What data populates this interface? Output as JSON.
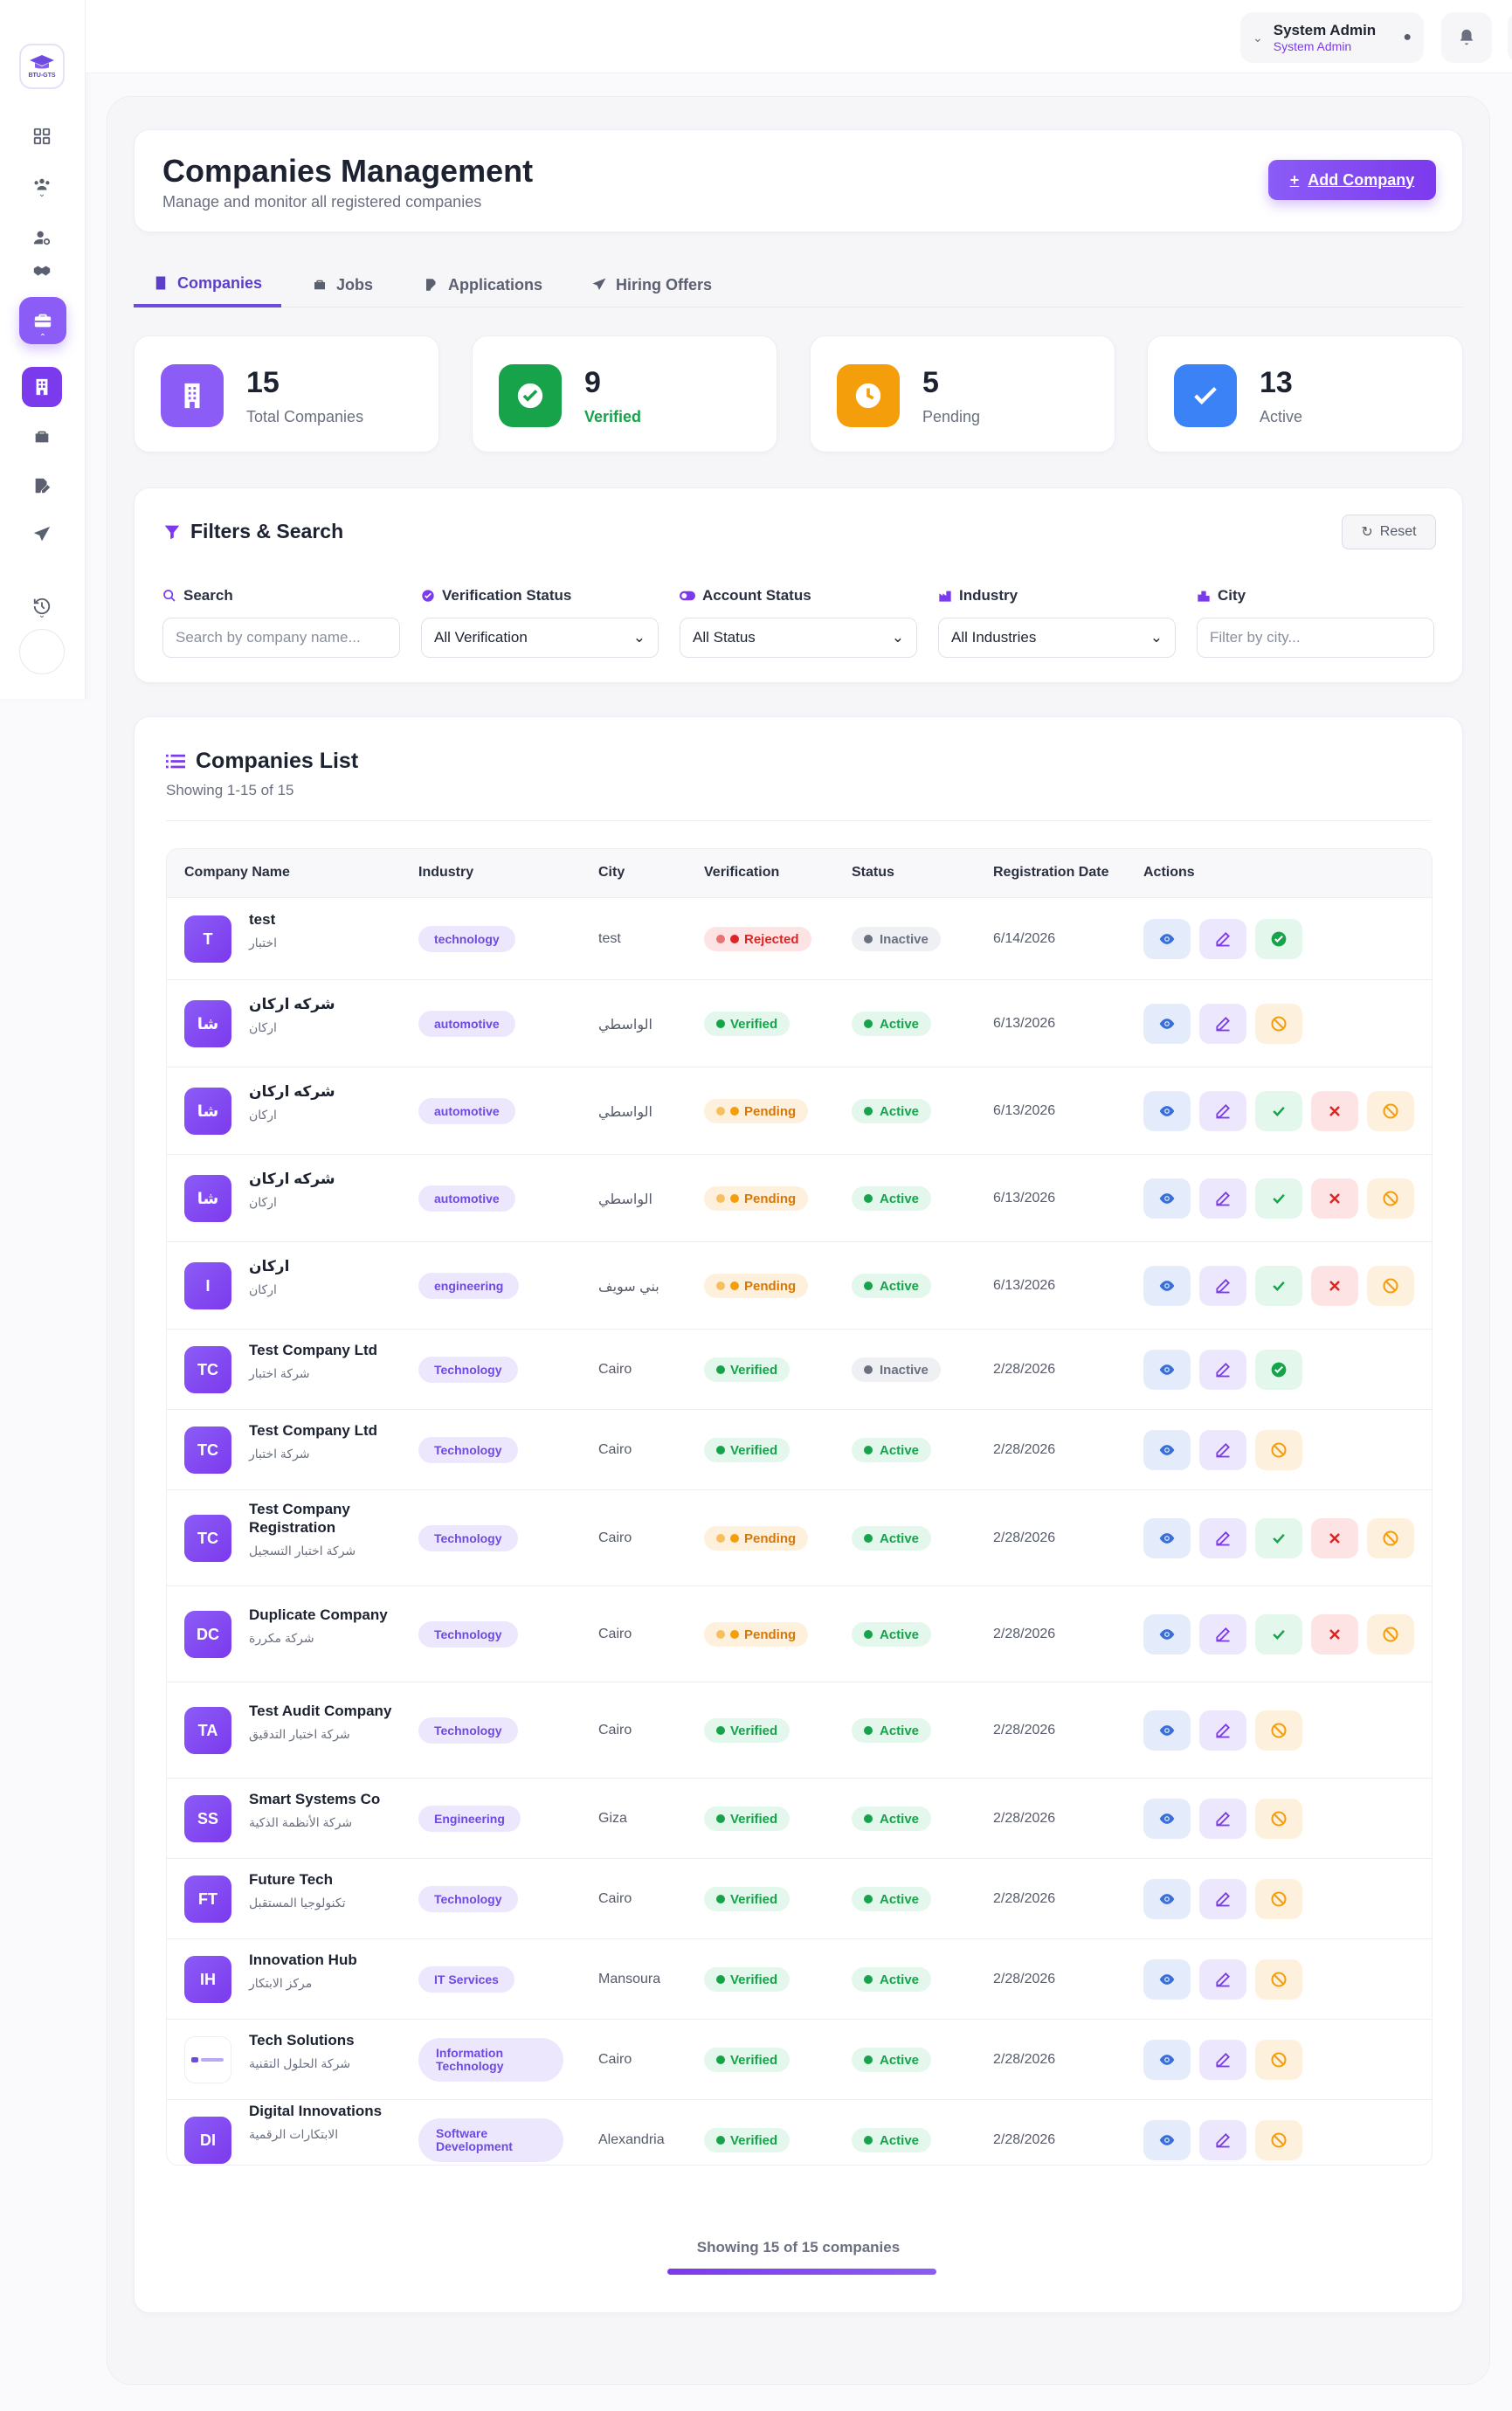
{
  "brand": {
    "logo_text": "BTU-GTS"
  },
  "sidebar": {
    "icons": [
      "dashboard-icon",
      "users-group-icon",
      "user-settings-icon",
      "handshake-icon",
      "briefcase-icon",
      "building-icon",
      "briefcase-small-icon",
      "file-edit-icon",
      "paper-plane-icon",
      "history-icon"
    ]
  },
  "topbar": {
    "user_name": "System Admin",
    "user_role": "System Admin",
    "lang": "ar"
  },
  "header": {
    "title": "Companies Management",
    "subtitle": "Manage and monitor all registered companies",
    "add_button": "Add Company"
  },
  "tabs": [
    {
      "label": "Companies",
      "active": true
    },
    {
      "label": "Jobs",
      "active": false
    },
    {
      "label": "Applications",
      "active": false
    },
    {
      "label": "Hiring Offers",
      "active": false
    }
  ],
  "stats": [
    {
      "value": "15",
      "label": "Total Companies",
      "color": "#8b5cf6"
    },
    {
      "value": "9",
      "label": "Verified",
      "color": "#16a34a"
    },
    {
      "value": "5",
      "label": "Pending",
      "color": "#f59e0b"
    },
    {
      "value": "13",
      "label": "Active",
      "color": "#3b82f6"
    }
  ],
  "filters": {
    "title": "Filters & Search",
    "reset": "Reset",
    "search_label": "Search",
    "search_placeholder": "Search by company name...",
    "verification_label": "Verification Status",
    "verification_value": "All Verification",
    "account_label": "Account Status",
    "account_value": "All Status",
    "industry_label": "Industry",
    "industry_value": "All Industries",
    "city_label": "City",
    "city_placeholder": "Filter by city..."
  },
  "list": {
    "title": "Companies List",
    "subtitle": "Showing 1-15 of 15",
    "columns": [
      "Company Name",
      "Industry",
      "City",
      "Verification",
      "Status",
      "Registration Date",
      "Actions"
    ],
    "footer": "Showing 15 of 15 companies"
  },
  "companies": [
    {
      "initials": "T",
      "name": "test",
      "name_ar": "اختبار",
      "industry": "technology",
      "city": "test",
      "verification": "Rejected",
      "status": "Inactive",
      "date": "6/14/2026",
      "actions": [
        "view",
        "edit",
        "activate"
      ]
    },
    {
      "initials": "شا",
      "name": "شركه اركان",
      "name_ar": "اركان",
      "industry": "automotive",
      "city": "الواسطي",
      "verification": "Verified",
      "status": "Active",
      "date": "6/13/2026",
      "actions": [
        "view",
        "edit",
        "suspend"
      ]
    },
    {
      "initials": "شا",
      "name": "شركه اركان",
      "name_ar": "اركان",
      "industry": "automotive",
      "city": "الواسطي",
      "verification": "Pending",
      "status": "Active",
      "date": "6/13/2026",
      "actions": [
        "view",
        "edit",
        "approve",
        "reject",
        "suspend"
      ]
    },
    {
      "initials": "شا",
      "name": "شركه اركان",
      "name_ar": "اركان",
      "industry": "automotive",
      "city": "الواسطي",
      "verification": "Pending",
      "status": "Active",
      "date": "6/13/2026",
      "actions": [
        "view",
        "edit",
        "approve",
        "reject",
        "suspend"
      ]
    },
    {
      "initials": "I",
      "name": "اركان",
      "name_ar": "اركان",
      "industry": "engineering",
      "city": "بني سويف",
      "verification": "Pending",
      "status": "Active",
      "date": "6/13/2026",
      "actions": [
        "view",
        "edit",
        "approve",
        "reject",
        "suspend"
      ]
    },
    {
      "initials": "TC",
      "name": "Test Company Ltd",
      "name_ar": "شركة اختبار",
      "industry": "Technology",
      "city": "Cairo",
      "verification": "Verified",
      "status": "Inactive",
      "date": "2/28/2026",
      "actions": [
        "view",
        "edit",
        "activate"
      ]
    },
    {
      "initials": "TC",
      "name": "Test Company Ltd",
      "name_ar": "شركة اختبار",
      "industry": "Technology",
      "city": "Cairo",
      "verification": "Verified",
      "status": "Active",
      "date": "2/28/2026",
      "actions": [
        "view",
        "edit",
        "suspend"
      ]
    },
    {
      "initials": "TC",
      "name": "Test Company Registration",
      "name_ar": "شركة اختبار التسجيل",
      "industry": "Technology",
      "city": "Cairo",
      "verification": "Pending",
      "status": "Active",
      "date": "2/28/2026",
      "actions": [
        "view",
        "edit",
        "approve",
        "reject",
        "suspend"
      ]
    },
    {
      "initials": "DC",
      "name": "Duplicate Company",
      "name_ar": "شركة مكررة",
      "industry": "Technology",
      "city": "Cairo",
      "verification": "Pending",
      "status": "Active",
      "date": "2/28/2026",
      "actions": [
        "view",
        "edit",
        "approve",
        "reject",
        "suspend"
      ]
    },
    {
      "initials": "TA",
      "name": "Test Audit Company",
      "name_ar": "شركة اختبار التدقيق",
      "industry": "Technology",
      "city": "Cairo",
      "verification": "Verified",
      "status": "Active",
      "date": "2/28/2026",
      "actions": [
        "view",
        "edit",
        "suspend"
      ]
    },
    {
      "initials": "SS",
      "name": "Smart Systems Co",
      "name_ar": "شركة الأنظمة الذكية",
      "industry": "Engineering",
      "city": "Giza",
      "verification": "Verified",
      "status": "Active",
      "date": "2/28/2026",
      "actions": [
        "view",
        "edit",
        "suspend"
      ]
    },
    {
      "initials": "FT",
      "name": "Future Tech",
      "name_ar": "تكنولوجيا المستقبل",
      "industry": "Technology",
      "city": "Cairo",
      "verification": "Verified",
      "status": "Active",
      "date": "2/28/2026",
      "actions": [
        "view",
        "edit",
        "suspend"
      ]
    },
    {
      "initials": "IH",
      "name": "Innovation Hub",
      "name_ar": "مركز الابتكار",
      "industry": "IT Services",
      "city": "Mansoura",
      "verification": "Verified",
      "status": "Active",
      "date": "2/28/2026",
      "actions": [
        "view",
        "edit",
        "suspend"
      ]
    },
    {
      "initials": "",
      "logo": true,
      "name": "Tech Solutions",
      "name_ar": "شركة الحلول التقنية",
      "industry": "Information Technology",
      "city": "Cairo",
      "verification": "Verified",
      "status": "Active",
      "date": "2/28/2026",
      "actions": [
        "view",
        "edit",
        "suspend"
      ]
    },
    {
      "initials": "DI",
      "name": "Digital Innovations",
      "name_ar": "الابتكارات الرقمية",
      "industry": "Software Development",
      "city": "Alexandria",
      "verification": "Verified",
      "status": "Active",
      "date": "2/28/2026",
      "actions": [
        "view",
        "edit",
        "suspend"
      ]
    }
  ]
}
